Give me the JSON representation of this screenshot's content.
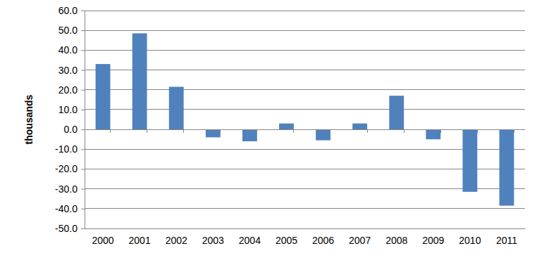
{
  "chart_data": {
    "type": "bar",
    "y_label": "thousands",
    "categories": [
      "2000",
      "2001",
      "2002",
      "2003",
      "2004",
      "2005",
      "2006",
      "2007",
      "2008",
      "2009",
      "2010",
      "2011"
    ],
    "values": [
      33.0,
      48.5,
      21.5,
      -4.0,
      -6.0,
      3.0,
      -5.5,
      3.0,
      17.0,
      -5.0,
      -31.5,
      -38.5
    ],
    "color": "#4f81bd",
    "ylim": [
      -50,
      60
    ],
    "yticks": [
      {
        "value": -50,
        "label": "-50.0"
      },
      {
        "value": -40,
        "label": "-40.0"
      },
      {
        "value": -30,
        "label": "-30.0"
      },
      {
        "value": -20,
        "label": "-20.0"
      },
      {
        "value": -10,
        "label": "-10.0"
      },
      {
        "value": 0,
        "label": "0.0"
      },
      {
        "value": 10,
        "label": "10.0"
      },
      {
        "value": 20,
        "label": "20.0"
      },
      {
        "value": 30,
        "label": "30.0"
      },
      {
        "value": 40,
        "label": "40.0"
      },
      {
        "value": 50,
        "label": "50.0"
      },
      {
        "value": 60,
        "label": "60.0"
      }
    ],
    "grid": true
  }
}
